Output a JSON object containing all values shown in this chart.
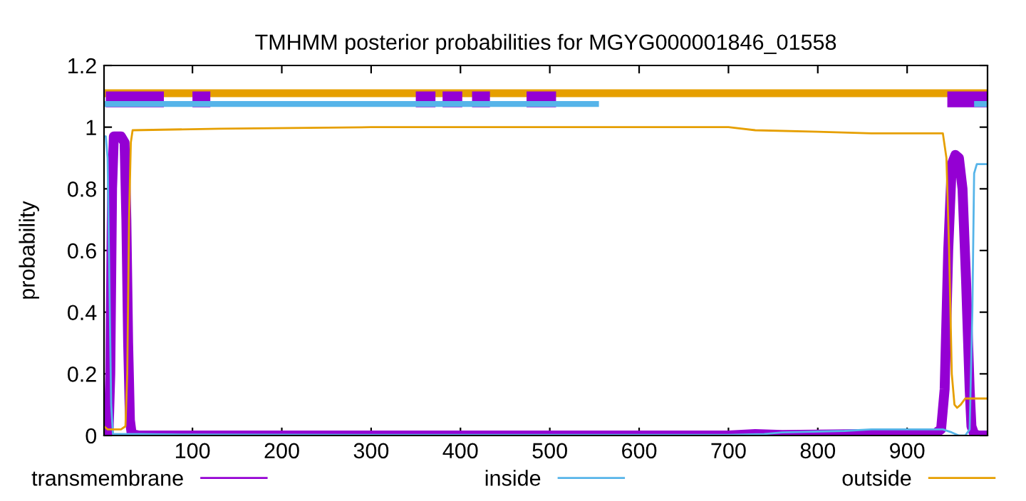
{
  "chart_data": {
    "type": "line",
    "title": "TMHMM posterior probabilities for MGYG000001846_01558",
    "ylabel": "probability",
    "xlim": [
      1,
      990
    ],
    "ylim": [
      0,
      1.2
    ],
    "xticks": [
      100,
      200,
      300,
      400,
      500,
      600,
      700,
      800,
      900
    ],
    "yticks": [
      0,
      0.2,
      0.4,
      0.6,
      0.8,
      1,
      1.2
    ],
    "grid": false,
    "legend": "bottom",
    "series": [
      {
        "name": "transmembrane",
        "color": "#9400d3",
        "x": [
          1,
          6,
          8,
          10,
          12,
          15,
          20,
          24,
          26,
          28,
          30,
          32,
          40,
          100,
          300,
          700,
          730,
          760,
          800,
          850,
          900,
          930,
          938,
          942,
          946,
          950,
          954,
          958,
          962,
          966,
          970,
          972,
          975,
          980,
          990
        ],
        "values": [
          0,
          0,
          0.2,
          0.8,
          0.97,
          0.97,
          0.97,
          0.95,
          0.7,
          0.3,
          0.05,
          0.005,
          0,
          0,
          0,
          0,
          0.005,
          0.002,
          0.003,
          0.005,
          0.003,
          0.004,
          0.02,
          0.15,
          0.6,
          0.88,
          0.91,
          0.9,
          0.8,
          0.5,
          0.15,
          0.03,
          0.005,
          0,
          0
        ]
      },
      {
        "name": "inside",
        "color": "#56b4e9",
        "x": [
          1,
          3,
          5,
          7,
          9,
          11,
          20,
          40,
          100,
          300,
          700,
          740,
          760,
          830,
          860,
          940,
          950,
          958,
          965,
          970,
          973,
          975,
          978,
          990
        ],
        "values": [
          0.97,
          0.97,
          0.9,
          0.5,
          0.1,
          0.005,
          0.005,
          0.005,
          0.003,
          0.002,
          0.002,
          0.005,
          0.01,
          0.015,
          0.02,
          0.02,
          0.01,
          0,
          0,
          0.02,
          0.4,
          0.85,
          0.88,
          0.88
        ]
      },
      {
        "name": "outside",
        "color": "#e69f00",
        "x": [
          1,
          5,
          20,
          25,
          27,
          29,
          31,
          33,
          130,
          300,
          700,
          730,
          800,
          860,
          940,
          944,
          947,
          950,
          953,
          956,
          960,
          965,
          990
        ],
        "values": [
          0.03,
          0.02,
          0.02,
          0.03,
          0.2,
          0.7,
          0.95,
          0.99,
          0.995,
          1,
          1,
          0.99,
          0.985,
          0.98,
          0.98,
          0.9,
          0.6,
          0.2,
          0.1,
          0.09,
          0.1,
          0.12,
          0.12
        ]
      },
      {
        "color": "#e69f00",
        "x": [
          1,
          990
        ],
        "values": [
          1.11,
          1.11
        ]
      },
      {
        "color": "#9400d3",
        "x": [
          3,
          68,
          70,
          100,
          120,
          122,
          350,
          372,
          374,
          380,
          402,
          404,
          413,
          433,
          435,
          474,
          507,
          509,
          945,
          990
        ],
        "values": [
          1.09,
          1.09,
          null,
          1.09,
          1.09,
          null,
          1.09,
          1.09,
          null,
          1.09,
          1.09,
          null,
          1.09,
          1.09,
          null,
          1.09,
          1.09,
          null,
          1.09,
          1.09
        ]
      },
      {
        "color": "#56b4e9",
        "x": [
          1,
          555,
          557,
          975,
          990
        ],
        "values": [
          1.075,
          1.075,
          null,
          1.075,
          1.075
        ]
      }
    ]
  }
}
